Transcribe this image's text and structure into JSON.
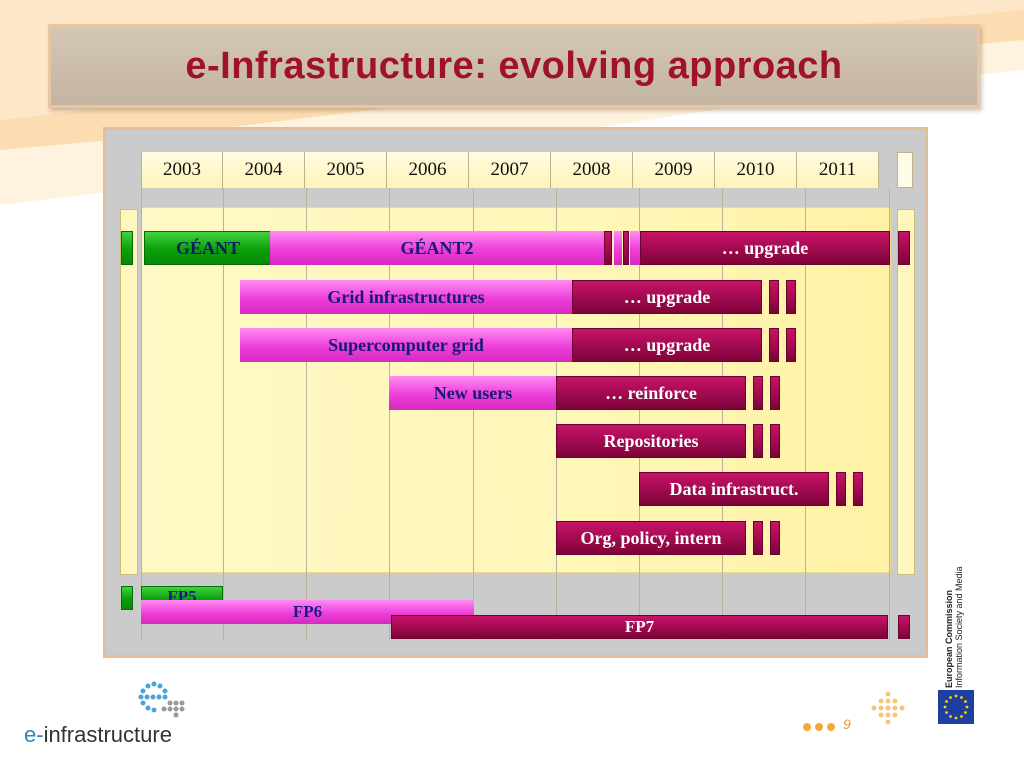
{
  "slide": {
    "title": "e-Infrastructure: evolving approach",
    "page_number": "9"
  },
  "timeline": {
    "years": [
      "2003",
      "2004",
      "2005",
      "2006",
      "2007",
      "2008",
      "2009",
      "2010",
      "2011"
    ],
    "rows": [
      {
        "labels": [
          "GÉANT",
          "GÉANT2",
          "… upgrade"
        ]
      },
      {
        "labels": [
          "Grid infrastructures",
          "… upgrade"
        ]
      },
      {
        "labels": [
          "Supercomputer grid",
          "… upgrade"
        ]
      },
      {
        "labels": [
          "New users",
          "… reinforce"
        ]
      },
      {
        "labels": [
          "Repositories"
        ]
      },
      {
        "labels": [
          "Data infrastruct."
        ]
      },
      {
        "labels": [
          "Org, policy, intern"
        ]
      }
    ],
    "programmes": [
      "FP5",
      "FP6",
      "FP7"
    ]
  },
  "footer": {
    "logo_prefix": "e-",
    "logo_word": "infrastructure",
    "ec_line1": "European Commission",
    "ec_line2": "Information Society and Media"
  },
  "colors": {
    "title": "#a0122c",
    "green": "#0aa00a",
    "pink": "#ee3fd8",
    "dark_magenta": "#a00a4e"
  }
}
